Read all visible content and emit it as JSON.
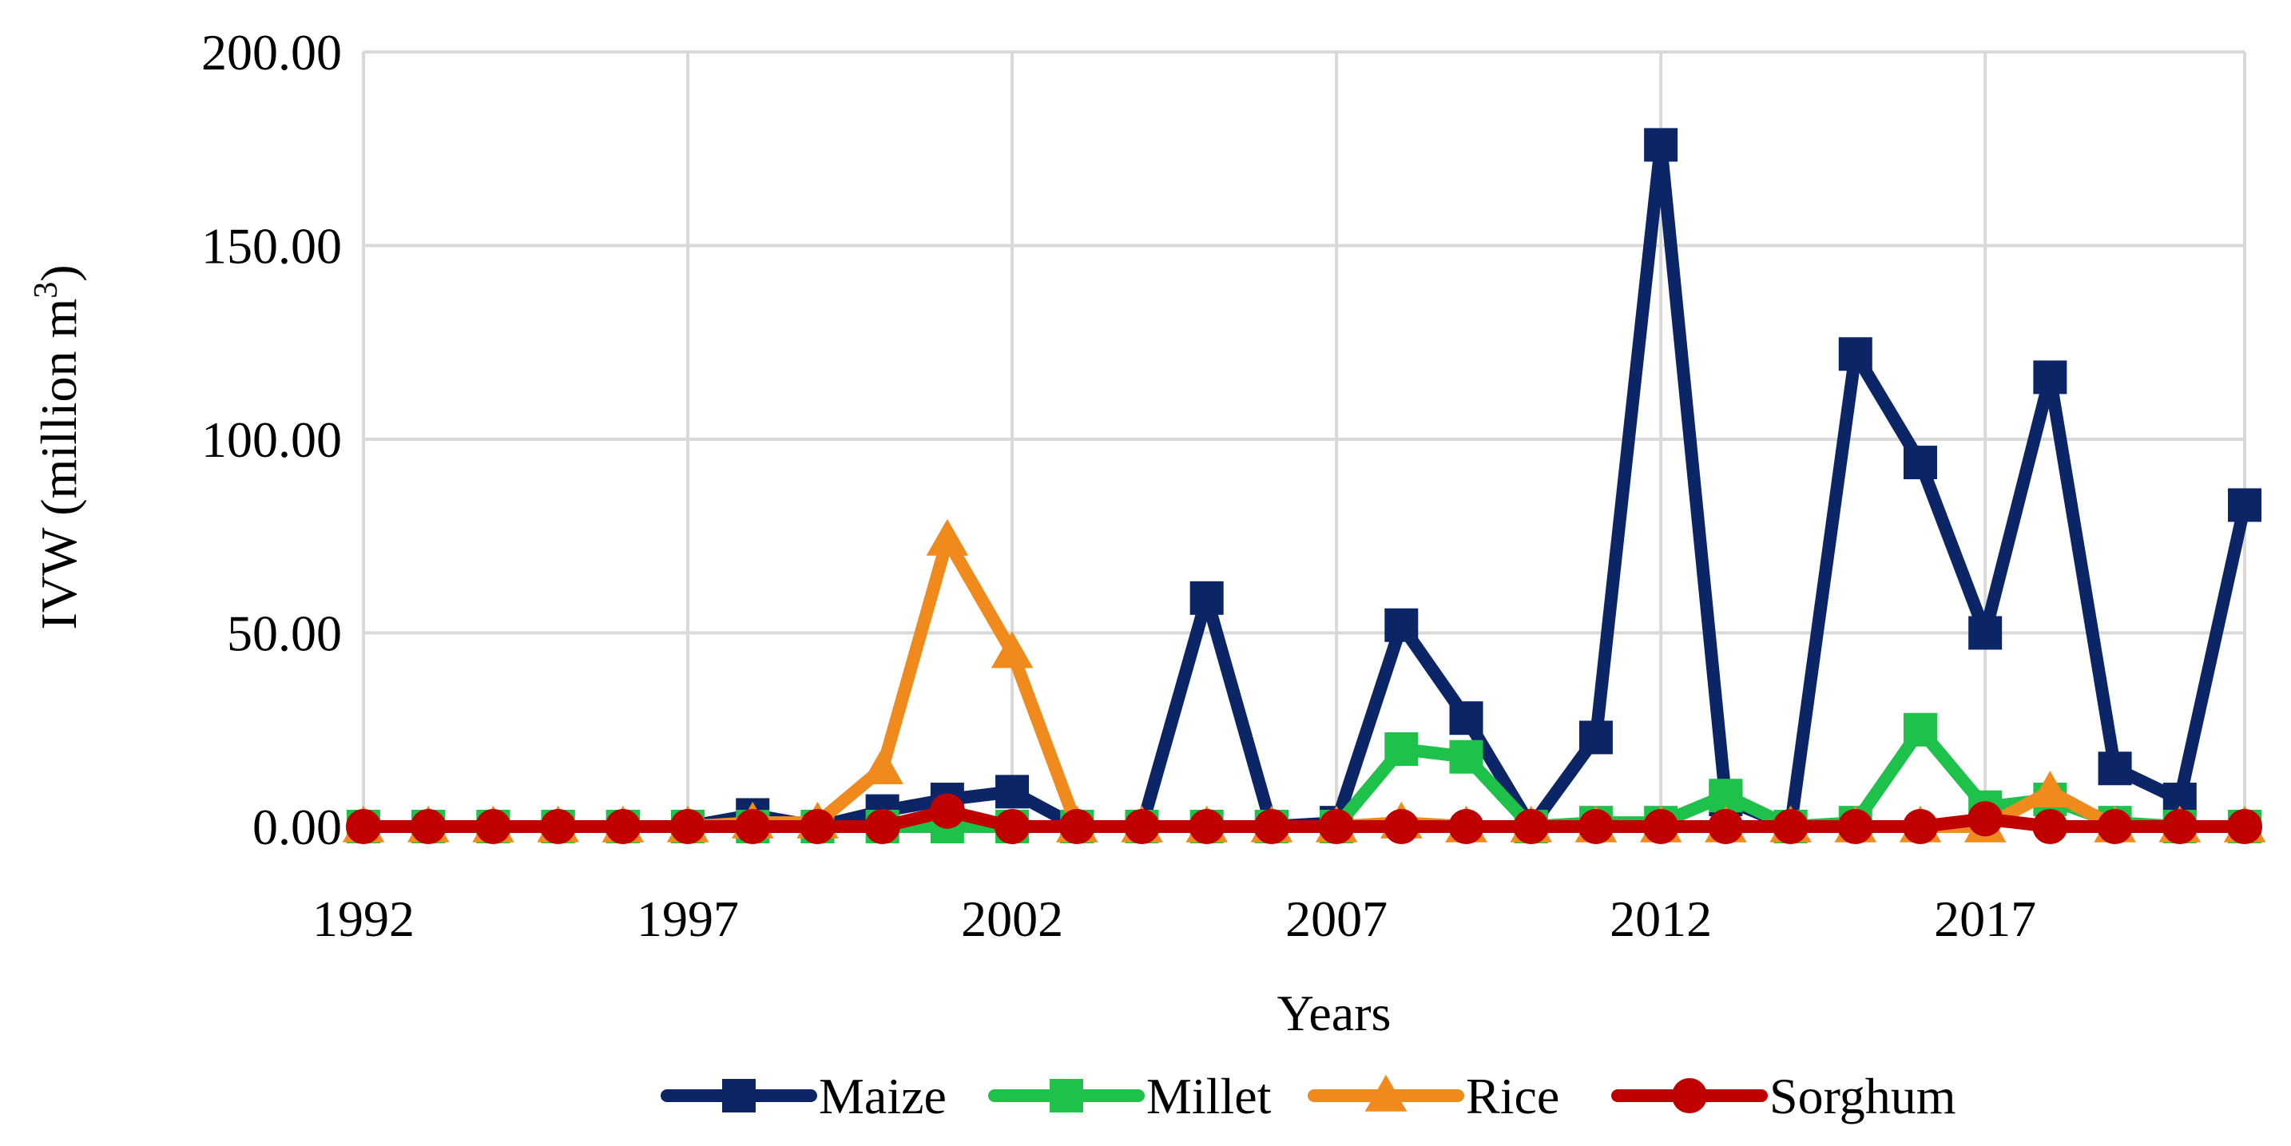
{
  "chart_data": {
    "type": "line",
    "title": "",
    "xlabel": "Years",
    "ylabel": "IVW (million m",
    "ylabel_superscript": "3",
    "ylabel_close": ")",
    "ylim": [
      0,
      200
    ],
    "yticks": [
      "0.00",
      "50.00",
      "100.00",
      "150.00",
      "200.00"
    ],
    "ytick_values": [
      0,
      50,
      100,
      150,
      200
    ],
    "xticks": [
      "1992",
      "1997",
      "2002",
      "2007",
      "2012",
      "2017"
    ],
    "xtick_values": [
      1992,
      1997,
      2002,
      2007,
      2012,
      2017
    ],
    "xlim": [
      1992,
      2021
    ],
    "grid": true,
    "legend_position": "bottom",
    "x": [
      1992,
      1993,
      1994,
      1995,
      1996,
      1997,
      1998,
      1999,
      2000,
      2001,
      2002,
      2003,
      2004,
      2005,
      2006,
      2007,
      2008,
      2009,
      2010,
      2011,
      2012,
      2013,
      2014,
      2015,
      2016,
      2017,
      2018,
      2019,
      2020,
      2021
    ],
    "series": [
      {
        "name": "Maize",
        "color": "#0b2566",
        "marker": "square",
        "values": [
          0,
          0,
          0,
          0,
          0,
          0,
          3,
          0,
          4,
          7,
          9,
          0,
          0,
          59,
          0,
          1,
          52,
          28,
          0,
          23,
          176,
          7,
          0,
          122,
          94,
          50,
          116,
          15,
          7,
          83
        ]
      },
      {
        "name": "Millet",
        "color": "#1ec24a",
        "marker": "square",
        "values": [
          0,
          0,
          0,
          0,
          0,
          0,
          0,
          0,
          0,
          0,
          0,
          0,
          0,
          0,
          0,
          0,
          20,
          18,
          0,
          1,
          1,
          8,
          0,
          1,
          25,
          5,
          7,
          1,
          0,
          0
        ]
      },
      {
        "name": "Rice",
        "color": "#f08a1c",
        "marker": "triangle",
        "values": [
          0,
          0,
          0,
          0,
          0,
          0,
          1,
          1,
          15,
          74,
          45,
          0,
          0,
          0,
          0,
          0,
          1,
          0,
          0,
          0,
          0,
          0,
          0,
          0,
          0,
          0,
          9,
          0,
          0,
          0
        ]
      },
      {
        "name": "Sorghum",
        "color": "#c00000",
        "marker": "circle",
        "values": [
          0,
          0,
          0,
          0,
          0,
          0,
          0,
          0,
          0,
          4,
          0,
          0,
          0,
          0,
          0,
          0,
          0,
          0,
          0,
          0,
          0,
          0,
          0,
          0,
          0,
          2,
          0,
          0,
          0,
          0
        ]
      }
    ]
  }
}
